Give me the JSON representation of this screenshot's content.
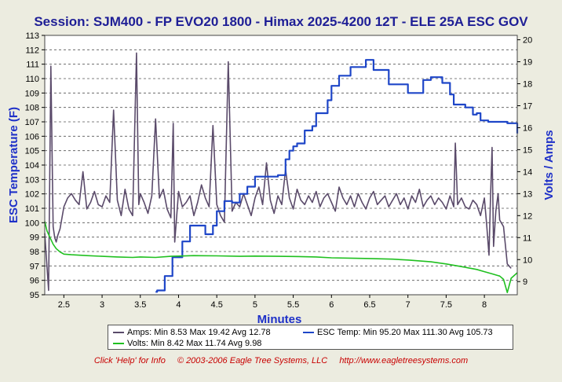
{
  "chart_data": {
    "type": "line",
    "title": "Session: SJM400 - FP EVO20 1800 - Himax 2025-4200 12T - ELE 25A ESC GOV",
    "xlabel": "Minutes",
    "ylabel_left": "ESC Temperature (F)",
    "ylabel_right": "Volts / Amps",
    "xlim": [
      2.25,
      8.43
    ],
    "ylim_left": [
      95,
      113
    ],
    "ylim_right": [
      8.4,
      20.2
    ],
    "x_ticks": [
      "2.5",
      "3",
      "3.5",
      "4",
      "4.5",
      "5",
      "5.5",
      "6",
      "6.5",
      "7",
      "7.5",
      "8"
    ],
    "y_left_ticks": [
      "95",
      "96",
      "97",
      "98",
      "99",
      "100",
      "101",
      "102",
      "103",
      "104",
      "105",
      "106",
      "107",
      "108",
      "109",
      "110",
      "111",
      "112",
      "113"
    ],
    "y_right_ticks": [
      "9",
      "10",
      "11",
      "12",
      "13",
      "14",
      "15",
      "16",
      "17",
      "18",
      "19",
      "20"
    ],
    "grid": "horizontal-dashed",
    "series": [
      {
        "name": "Amps",
        "axis": "right",
        "color": "#5a4a6a",
        "x": [
          2.25,
          2.3,
          2.33,
          2.36,
          2.38,
          2.4,
          2.42,
          2.45,
          2.5,
          2.55,
          2.6,
          2.65,
          2.7,
          2.75,
          2.8,
          2.85,
          2.9,
          2.95,
          3.0,
          3.05,
          3.1,
          3.15,
          3.2,
          3.25,
          3.3,
          3.35,
          3.4,
          3.45,
          3.48,
          3.5,
          3.55,
          3.6,
          3.65,
          3.7,
          3.75,
          3.8,
          3.85,
          3.9,
          3.93,
          3.95,
          4.0,
          4.05,
          4.1,
          4.15,
          4.2,
          4.25,
          4.3,
          4.35,
          4.4,
          4.45,
          4.5,
          4.55,
          4.6,
          4.65,
          4.7,
          4.75,
          4.8,
          4.85,
          4.9,
          4.95,
          5.0,
          5.05,
          5.1,
          5.15,
          5.2,
          5.25,
          5.3,
          5.35,
          5.4,
          5.45,
          5.5,
          5.55,
          5.6,
          5.65,
          5.7,
          5.75,
          5.8,
          5.85,
          5.9,
          5.95,
          6.0,
          6.05,
          6.1,
          6.15,
          6.2,
          6.25,
          6.3,
          6.35,
          6.4,
          6.45,
          6.5,
          6.55,
          6.6,
          6.65,
          6.7,
          6.75,
          6.8,
          6.85,
          6.9,
          6.95,
          7.0,
          7.05,
          7.1,
          7.15,
          7.2,
          7.25,
          7.3,
          7.35,
          7.4,
          7.45,
          7.5,
          7.55,
          7.6,
          7.62,
          7.65,
          7.7,
          7.75,
          7.8,
          7.85,
          7.9,
          7.95,
          8.0,
          8.03,
          8.06,
          8.08,
          8.1,
          8.12,
          8.15,
          8.18,
          8.2,
          8.25,
          8.3,
          8.35
        ],
        "values": [
          11.2,
          8.6,
          18.8,
          11.5,
          11.0,
          10.8,
          11.1,
          11.4,
          12.4,
          12.8,
          13.0,
          12.7,
          12.5,
          14.0,
          12.3,
          12.6,
          13.1,
          12.5,
          12.4,
          12.9,
          12.6,
          16.8,
          12.7,
          12.0,
          13.2,
          12.3,
          12.0,
          19.4,
          12.5,
          13.0,
          12.6,
          12.1,
          12.9,
          16.4,
          12.8,
          13.2,
          12.3,
          11.9,
          16.2,
          10.8,
          13.1,
          12.4,
          12.6,
          12.9,
          12.0,
          12.6,
          13.4,
          12.8,
          12.4,
          16.1,
          12.5,
          12.0,
          11.7,
          19.0,
          12.2,
          12.6,
          12.4,
          13.0,
          12.5,
          12.0,
          12.8,
          13.3,
          12.5,
          14.4,
          12.7,
          12.1,
          12.9,
          12.5,
          14.1,
          12.8,
          12.3,
          13.2,
          12.7,
          12.5,
          12.9,
          12.6,
          13.1,
          12.4,
          12.8,
          13.0,
          12.6,
          12.2,
          13.3,
          12.8,
          12.5,
          12.9,
          12.4,
          13.0,
          12.6,
          12.3,
          12.8,
          13.1,
          12.5,
          12.7,
          12.9,
          12.4,
          12.7,
          13.0,
          12.5,
          12.8,
          12.3,
          12.9,
          12.6,
          13.2,
          12.4,
          12.7,
          12.9,
          12.5,
          12.8,
          12.6,
          12.3,
          12.9,
          12.4,
          15.3,
          12.5,
          12.8,
          12.4,
          12.3,
          12.7,
          12.5,
          12.0,
          12.8,
          11.6,
          10.2,
          12.8,
          15.1,
          10.6,
          12.2,
          13.0,
          11.8,
          11.5,
          9.8,
          9.6
        ]
      },
      {
        "name": "ESC Temp",
        "axis": "left",
        "color": "#1e46c8",
        "x": [
          3.7,
          3.72,
          3.82,
          3.92,
          4.05,
          4.15,
          4.2,
          4.35,
          4.45,
          4.5,
          4.6,
          4.7,
          4.8,
          4.9,
          5.0,
          5.3,
          5.4,
          5.45,
          5.5,
          5.55,
          5.65,
          5.75,
          5.8,
          5.95,
          6.0,
          6.1,
          6.25,
          6.45,
          6.55,
          6.75,
          7.0,
          7.2,
          7.3,
          7.45,
          7.55,
          7.6,
          7.75,
          7.85,
          7.9,
          7.95,
          8.05,
          8.3,
          8.43
        ],
        "values": [
          95.2,
          95.3,
          96.3,
          97.6,
          98.7,
          99.8,
          99.8,
          99.2,
          99.8,
          100.8,
          101.5,
          101.4,
          102.0,
          102.5,
          103.2,
          103.3,
          104.4,
          105.0,
          105.3,
          105.5,
          106.4,
          106.7,
          107.6,
          108.5,
          109.5,
          110.2,
          110.8,
          111.3,
          110.6,
          109.6,
          109.0,
          109.9,
          110.1,
          109.7,
          108.9,
          108.2,
          108.0,
          107.5,
          107.6,
          107.1,
          107.0,
          106.9,
          106.2
        ]
      },
      {
        "name": "Volts",
        "axis": "right",
        "color": "#20c020",
        "x": [
          2.25,
          2.28,
          2.32,
          2.36,
          2.4,
          2.45,
          2.5,
          2.6,
          2.8,
          3.0,
          3.2,
          3.4,
          3.5,
          3.7,
          3.9,
          4.0,
          4.2,
          4.5,
          4.8,
          5.0,
          5.3,
          5.5,
          5.8,
          6.0,
          6.3,
          6.5,
          6.8,
          7.0,
          7.3,
          7.5,
          7.7,
          7.9,
          8.0,
          8.1,
          8.2,
          8.25,
          8.3,
          8.35,
          8.43
        ],
        "values": [
          11.74,
          11.3,
          11.0,
          10.7,
          10.5,
          10.35,
          10.25,
          10.22,
          10.18,
          10.15,
          10.12,
          10.1,
          10.12,
          10.1,
          10.15,
          10.16,
          10.18,
          10.17,
          10.15,
          10.16,
          10.15,
          10.14,
          10.12,
          10.08,
          10.06,
          10.05,
          10.02,
          9.98,
          9.9,
          9.8,
          9.68,
          9.55,
          9.45,
          9.35,
          9.25,
          9.1,
          8.5,
          9.15,
          9.4
        ]
      }
    ],
    "legend": {
      "amps": "Amps:  Min 8.53 Max 19.42 Avg 12.78",
      "esc": "ESC Temp:  Min 95.20 Max 111.30 Avg 105.73",
      "volts": "Volts:  Min 8.42 Max 11.74 Avg 9.98"
    }
  },
  "footer": {
    "help": "Click 'Help' for Info",
    "copyright": "© 2003-2006 Eagle Tree Systems, LLC",
    "url": "http://www.eagletreesystems.com"
  },
  "colors": {
    "background": "#ecece0",
    "plot_background": "#ffffff",
    "title": "#1e1e96",
    "axis_title": "#1e30c8",
    "footer": "#c80000"
  }
}
